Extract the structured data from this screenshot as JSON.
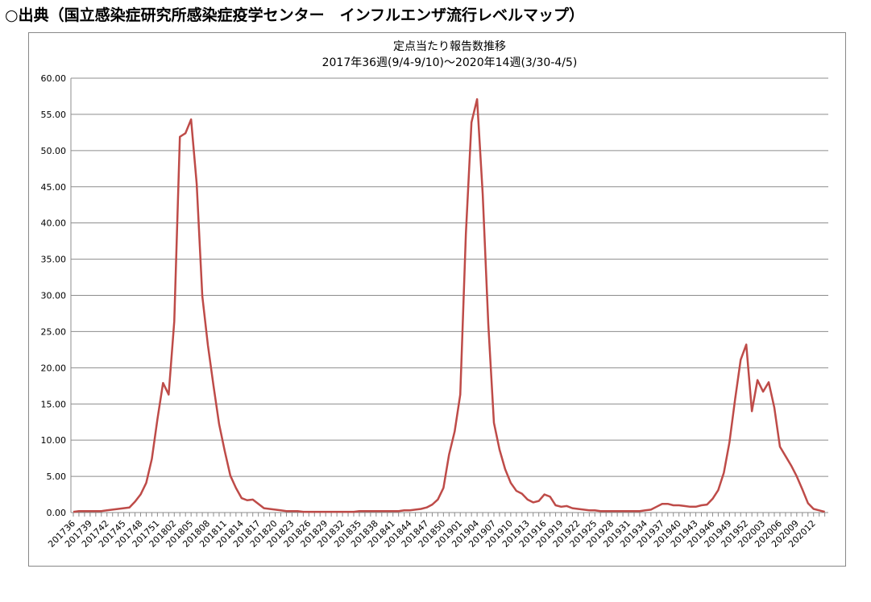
{
  "header": {
    "title": "○出典（国立感染症研究所感染症疫学センター　インフルエンザ流行レベルマップ）"
  },
  "chart_data": {
    "type": "line",
    "title": "定点当たり報告数推移",
    "subtitle": "2017年36週(9/4-9/10)～2020年14週(3/30-4/5)",
    "categories": [
      "201736",
      null,
      null,
      "201739",
      null,
      null,
      "201742",
      null,
      null,
      "201745",
      null,
      null,
      "201748",
      null,
      null,
      "201751",
      null,
      null,
      "201802",
      null,
      null,
      "201805",
      null,
      null,
      "201808",
      null,
      null,
      "201811",
      null,
      null,
      "201814",
      null,
      null,
      "201817",
      null,
      null,
      "201820",
      null,
      null,
      "201823",
      null,
      null,
      "201826",
      null,
      null,
      "201829",
      null,
      null,
      "201832",
      null,
      null,
      "201835",
      null,
      null,
      "201838",
      null,
      null,
      "201841",
      null,
      null,
      "201844",
      null,
      null,
      "201847",
      null,
      null,
      "201850",
      null,
      null,
      "201901",
      null,
      null,
      "201904",
      null,
      null,
      "201907",
      null,
      null,
      "201910",
      null,
      null,
      "201913",
      null,
      null,
      "201916",
      null,
      null,
      "201919",
      null,
      null,
      "201922",
      null,
      null,
      "201925",
      null,
      null,
      "201928",
      null,
      null,
      "201931",
      null,
      null,
      "201934",
      null,
      null,
      "201937",
      null,
      null,
      "201940",
      null,
      null,
      "201943",
      null,
      null,
      "201946",
      null,
      null,
      "201949",
      null,
      null,
      "201952",
      null,
      null,
      "202003",
      null,
      null,
      "202006",
      null,
      null,
      "202009",
      null,
      null,
      "202012",
      null,
      null
    ],
    "series": [
      {
        "name": "定点当たり報告数",
        "color": "#be4b48",
        "values": [
          0.1,
          0.2,
          0.2,
          0.2,
          0.2,
          0.2,
          0.3,
          0.4,
          0.5,
          0.6,
          0.7,
          1.5,
          2.5,
          4.1,
          7.4,
          12.9,
          17.9,
          16.3,
          26.4,
          51.9,
          52.4,
          54.3,
          45.4,
          29.9,
          23.1,
          17.5,
          12.2,
          8.5,
          5.1,
          3.4,
          2.0,
          1.7,
          1.8,
          1.2,
          0.6,
          0.5,
          0.4,
          0.3,
          0.2,
          0.2,
          0.2,
          0.1,
          0.1,
          0.1,
          0.1,
          0.1,
          0.1,
          0.1,
          0.1,
          0.1,
          0.1,
          0.2,
          0.2,
          0.2,
          0.2,
          0.2,
          0.2,
          0.2,
          0.2,
          0.3,
          0.3,
          0.4,
          0.5,
          0.7,
          1.1,
          1.8,
          3.4,
          8.0,
          11.2,
          16.3,
          38.5,
          53.9,
          57.1,
          44.0,
          26.0,
          12.4,
          8.7,
          6.0,
          4.1,
          3.0,
          2.6,
          1.8,
          1.4,
          1.6,
          2.5,
          2.2,
          1.0,
          0.8,
          0.9,
          0.6,
          0.5,
          0.4,
          0.3,
          0.3,
          0.2,
          0.2,
          0.2,
          0.2,
          0.2,
          0.2,
          0.2,
          0.2,
          0.3,
          0.4,
          0.8,
          1.2,
          1.2,
          1.0,
          1.0,
          0.9,
          0.8,
          0.8,
          1.0,
          1.1,
          1.9,
          3.1,
          5.5,
          9.7,
          15.6,
          21.1,
          23.2,
          14.0,
          18.3,
          16.7,
          18.0,
          14.5,
          9.1,
          7.8,
          6.5,
          5.0,
          3.2,
          1.3,
          0.5,
          0.3,
          0.1
        ]
      }
    ],
    "ylim": [
      0,
      60
    ],
    "yticks": [
      {
        "value": 0,
        "label": "0.00"
      },
      {
        "value": 5,
        "label": "5.00"
      },
      {
        "value": 10,
        "label": "10.00"
      },
      {
        "value": 15,
        "label": "15.00"
      },
      {
        "value": 20,
        "label": "20.00"
      },
      {
        "value": 25,
        "label": "25.00"
      },
      {
        "value": 30,
        "label": "30.00"
      },
      {
        "value": 35,
        "label": "35.00"
      },
      {
        "value": 40,
        "label": "40.00"
      },
      {
        "value": 45,
        "label": "45.00"
      },
      {
        "value": 50,
        "label": "50.00"
      },
      {
        "value": 55,
        "label": "55.00"
      },
      {
        "value": 60,
        "label": "60.00"
      }
    ],
    "grid": true
  }
}
